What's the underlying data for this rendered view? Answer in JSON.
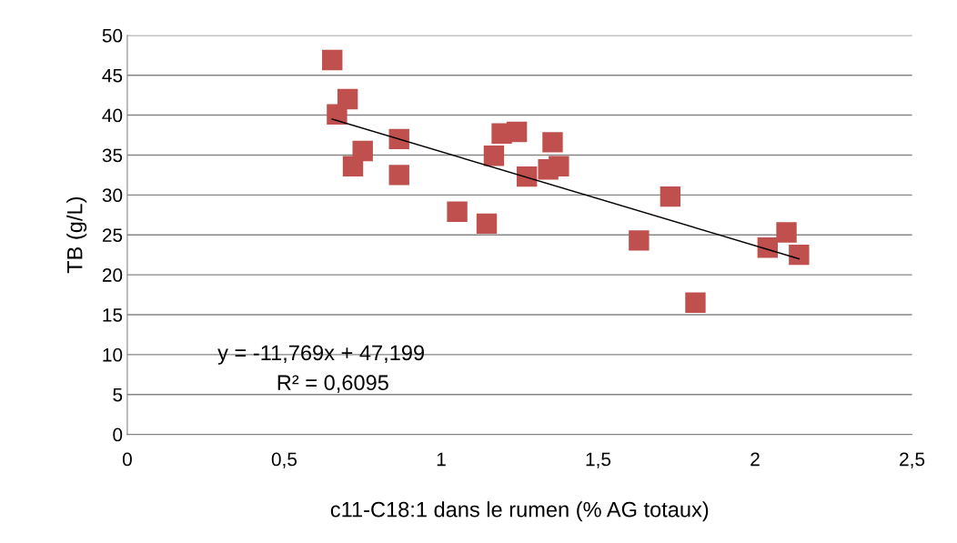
{
  "chart_data": {
    "type": "scatter",
    "xlabel": "c11-C18:1 dans le rumen (% AG totaux)",
    "ylabel": "TB (g/L)",
    "series": [
      {
        "color": "#c0504d",
        "marker": "square",
        "x": [
          0.653,
          0.668,
          0.702,
          0.719,
          0.75,
          0.866,
          0.866,
          1.051,
          1.145,
          1.168,
          1.193,
          1.241,
          1.273,
          1.341,
          1.355,
          1.375,
          1.63,
          1.73,
          1.81,
          2.04,
          2.1,
          2.14
        ],
        "values": [
          46.9,
          40.1,
          42.0,
          33.6,
          35.5,
          37.0,
          32.5,
          27.9,
          26.4,
          34.9,
          37.7,
          37.9,
          32.3,
          33.2,
          36.6,
          33.6,
          24.3,
          29.8,
          16.5,
          23.4,
          25.3,
          22.5
        ]
      },
      {
        "type": "line",
        "color": "#000000",
        "x": [
          0.653,
          2.14
        ],
        "values": [
          39.5,
          22.0
        ]
      }
    ],
    "annotations": [
      "y = -11,769x + 47,199",
      "R² = 0,6095"
    ],
    "xlim": [
      0,
      2.5
    ],
    "xticks": [
      0,
      {
        "value": 0.5,
        "label": "0,5"
      },
      1,
      {
        "value": 1.5,
        "label": "1,5"
      },
      2,
      {
        "value": 2.5,
        "label": "2,5"
      }
    ],
    "ylim": [
      0,
      50
    ],
    "yticks": [
      0,
      5,
      10,
      15,
      20,
      25,
      30,
      35,
      40,
      45,
      50
    ],
    "grid": "y"
  }
}
